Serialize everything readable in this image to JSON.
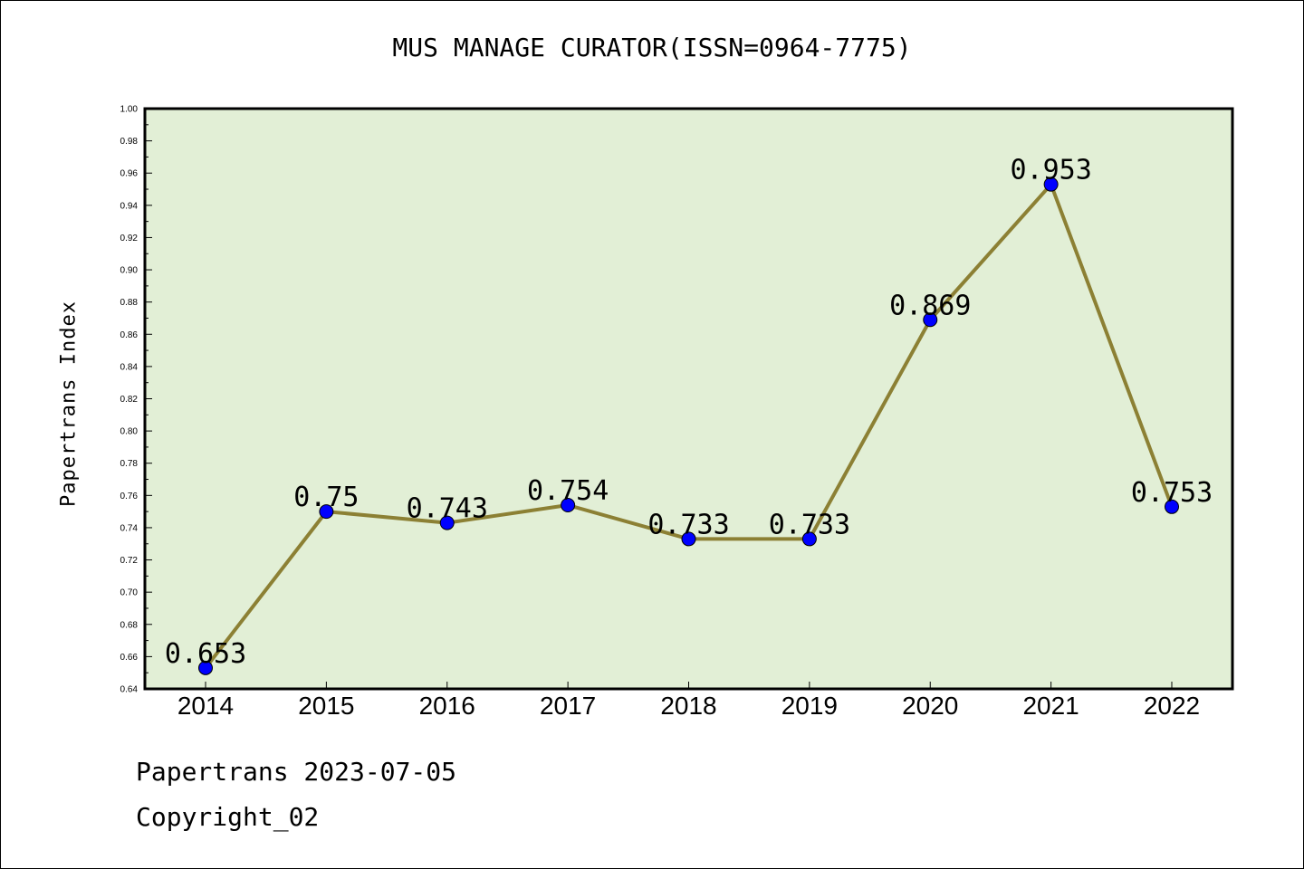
{
  "title": "MUS MANAGE CURATOR(ISSN=0964-7775)",
  "footer": {
    "line1": "Papertrans 2023-07-05",
    "line2": "Copyright_02"
  },
  "colors": {
    "plot_bg": "#e2efd6",
    "line": "#8c8034",
    "marker": "#0000ff",
    "frame": "#000000"
  },
  "chart_data": {
    "type": "line",
    "title": "MUS MANAGE CURATOR(ISSN=0964-7775)",
    "xlabel": "",
    "ylabel": "Papertrans Index",
    "categories": [
      "2014",
      "2015",
      "2016",
      "2017",
      "2018",
      "2019",
      "2020",
      "2021",
      "2022"
    ],
    "series": [
      {
        "values": [
          0.653,
          0.75,
          0.743,
          0.754,
          0.733,
          0.733,
          0.869,
          0.953,
          0.753
        ]
      }
    ],
    "data_labels": [
      "0.653",
      "0.75",
      "0.743",
      "0.754",
      "0.733",
      "0.733",
      "0.869",
      "0.953",
      "0.753"
    ],
    "ylim": [
      0.64,
      1.0
    ],
    "yticks": [
      "0.64",
      "0.66",
      "0.68",
      "0.70",
      "0.72",
      "0.74",
      "0.76",
      "0.78",
      "0.80",
      "0.82",
      "0.84",
      "0.86",
      "0.88",
      "0.90",
      "0.92",
      "0.94",
      "0.96",
      "0.98",
      "1.00"
    ],
    "grid": false,
    "legend": "none"
  }
}
